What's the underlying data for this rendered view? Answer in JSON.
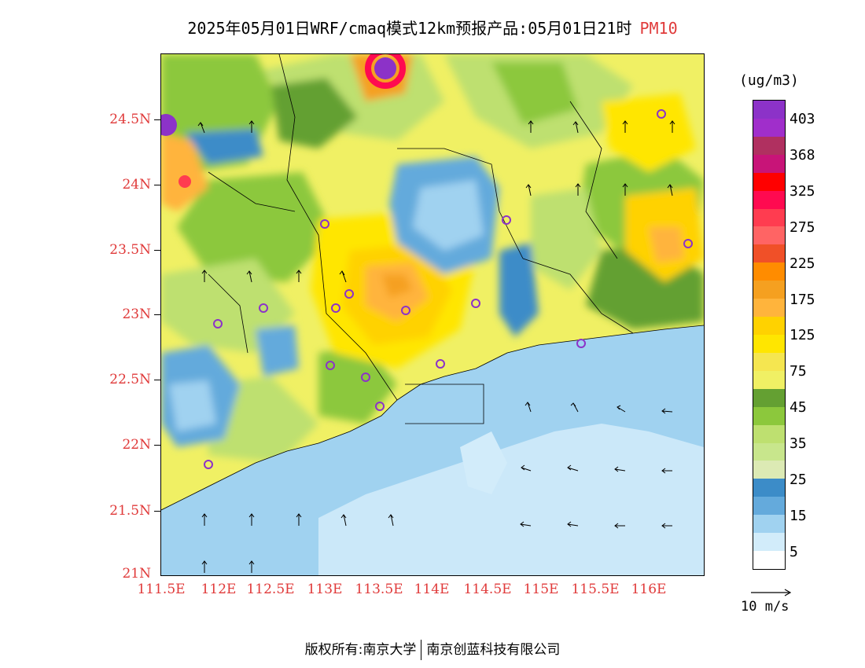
{
  "title": {
    "main": "2025年05月01日WRF/cmaq模式12km预报产品:05月01日21时",
    "pollutant": "PM10"
  },
  "axes": {
    "lat_labels": [
      "24.5N",
      "24N",
      "23.5N",
      "23N",
      "22.5N",
      "22N",
      "21.5N",
      "21N"
    ],
    "lon_labels": [
      "111.5E",
      "112E",
      "112.5E",
      "113E",
      "113.5E",
      "114E",
      "114.5E",
      "115E",
      "115.5E",
      "116E"
    ],
    "label_color": "#e03a3a"
  },
  "colorbar": {
    "unit": "(ug/m3)",
    "labels": [
      "403",
      "368",
      "325",
      "275",
      "225",
      "175",
      "125",
      "75",
      "45",
      "35",
      "25",
      "15",
      "5"
    ],
    "colors": [
      "#8c32c8",
      "#a02ecb",
      "#b03060",
      "#c81478",
      "#ff0000",
      "#ff0a50",
      "#ff3c50",
      "#ff6464",
      "#f05028",
      "#ff8c00",
      "#f5a020",
      "#ffb43c",
      "#ffd200",
      "#ffe600",
      "#f5e650",
      "#f0f064",
      "#64a032",
      "#8cc83c",
      "#bee070",
      "#c8e68c",
      "#dceab4",
      "#3c8cc8",
      "#64aadc",
      "#a0d2f0",
      "#d2ecfa",
      "#ffffff"
    ]
  },
  "wind_vector": {
    "label": "10 m/s"
  },
  "footer": {
    "left": "版权所有:南京大学",
    "right": "南京创蓝科技有限公司"
  }
}
